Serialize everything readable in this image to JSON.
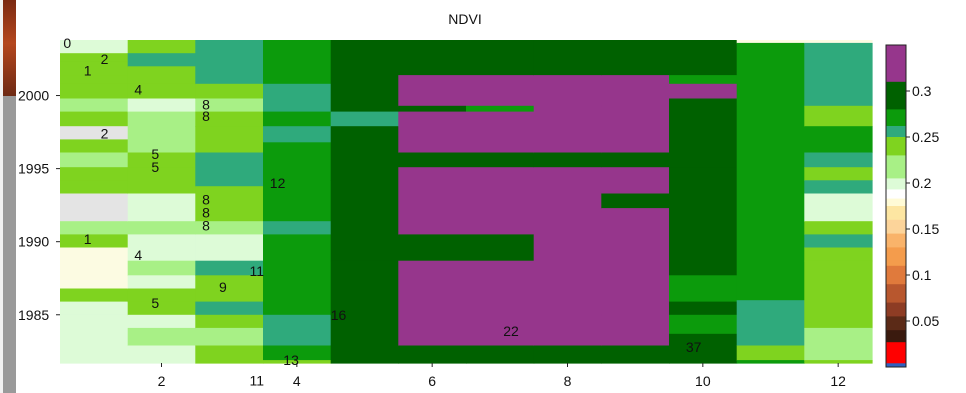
{
  "chart_data": {
    "type": "heatmap",
    "title": "NDVI",
    "x_ticks": [
      "2",
      "4",
      "6",
      "8",
      "10",
      "12"
    ],
    "y_ticks": [
      "2000",
      "1995",
      "1990",
      "1985"
    ],
    "x_range": [
      1,
      13
    ],
    "y_range": [
      1981.7,
      2003.8
    ],
    "columns": [
      {
        "x": 1,
        "segments": [
          [
            2002.9,
            2004,
            0.196
          ],
          [
            2002.3,
            2002.9,
            0.244
          ],
          [
            2001.4,
            2002.3,
            0.234
          ],
          [
            2000.8,
            2001.4,
            0.238
          ],
          [
            1999.8,
            2000.8,
            0.239
          ],
          [
            1998.9,
            1999.8,
            0.213
          ],
          [
            1997.9,
            1998.9,
            0.236
          ],
          [
            1997.0,
            1997.9,
            0.185
          ],
          [
            1996.1,
            1997.0,
            0.234
          ],
          [
            1995.1,
            1996.1,
            0.212
          ],
          [
            1994.2,
            1995.1,
            0.239
          ],
          [
            1993.3,
            1994.2,
            0.236
          ],
          [
            1991.4,
            1993.3,
            0.186
          ],
          [
            1990.5,
            1991.4,
            0.21
          ],
          [
            1989.6,
            1990.5,
            0.244
          ],
          [
            1988.7,
            1989.6,
            0.192
          ],
          [
            1986.8,
            1988.7,
            0.192
          ],
          [
            1985.9,
            1986.8,
            0.244
          ],
          [
            1985.0,
            1985.9,
            0.2
          ],
          [
            1981.6,
            1985.0,
            0.199
          ]
        ]
      },
      {
        "x": 2,
        "segments": [
          [
            2002.9,
            2004,
            0.236
          ],
          [
            2002.0,
            2002.9,
            0.259
          ],
          [
            2000.8,
            2002.0,
            0.236
          ],
          [
            1999.8,
            2000.8,
            0.238
          ],
          [
            1998.9,
            1999.8,
            0.198
          ],
          [
            1996.1,
            1998.9,
            0.21
          ],
          [
            1995.1,
            1996.1,
            0.235
          ],
          [
            1993.3,
            1995.1,
            0.236
          ],
          [
            1991.4,
            1993.3,
            0.198
          ],
          [
            1990.5,
            1991.4,
            0.212
          ],
          [
            1989.6,
            1990.5,
            0.199
          ],
          [
            1988.7,
            1989.6,
            0.199
          ],
          [
            1987.7,
            1988.7,
            0.21
          ],
          [
            1986.8,
            1987.7,
            0.195
          ],
          [
            1985.9,
            1986.8,
            0.236
          ],
          [
            1985.0,
            1985.9,
            0.235
          ],
          [
            1984.1,
            1985.0,
            0.197
          ],
          [
            1982.9,
            1984.1,
            0.21
          ],
          [
            1981.6,
            1982.9,
            0.198
          ]
        ]
      },
      {
        "x": 3,
        "segments": [
          [
            2000.8,
            2004,
            0.259
          ],
          [
            1999.8,
            2000.8,
            0.238
          ],
          [
            1998.9,
            1999.8,
            0.212
          ],
          [
            1997.9,
            1998.9,
            0.237
          ],
          [
            1996.1,
            1997.9,
            0.236
          ],
          [
            1993.8,
            1996.1,
            0.259
          ],
          [
            1991.4,
            1993.8,
            0.238
          ],
          [
            1990.5,
            1991.4,
            0.21
          ],
          [
            1988.7,
            1990.5,
            0.2
          ],
          [
            1987.7,
            1988.7,
            0.257
          ],
          [
            1985.9,
            1987.7,
            0.238
          ],
          [
            1985.0,
            1985.9,
            0.257
          ],
          [
            1984.1,
            1985.0,
            0.238
          ],
          [
            1982.9,
            1984.1,
            0.212
          ],
          [
            1981.6,
            1982.9,
            0.238
          ]
        ]
      },
      {
        "x": 4,
        "segments": [
          [
            2000.8,
            2004,
            0.27
          ],
          [
            1998.9,
            2000.8,
            0.259
          ],
          [
            1997.9,
            1998.9,
            0.27
          ],
          [
            1996.8,
            1997.9,
            0.259
          ],
          [
            1991.4,
            1996.8,
            0.27
          ],
          [
            1990.5,
            1991.4,
            0.259
          ],
          [
            1985.0,
            1990.5,
            0.27
          ],
          [
            1982.9,
            1985.0,
            0.259
          ],
          [
            1981.9,
            1982.9,
            0.27
          ],
          [
            1981.6,
            1981.9,
            0.236
          ]
        ]
      },
      {
        "x": 5,
        "segments": [
          [
            1998.9,
            2004,
            0.3
          ],
          [
            1997.9,
            1998.9,
            0.259
          ],
          [
            1994.2,
            1997.9,
            0.3
          ],
          [
            1988.7,
            1994.2,
            0.3
          ],
          [
            1985.0,
            1988.7,
            0.3
          ],
          [
            1982.9,
            1985.0,
            0.3
          ],
          [
            1981.6,
            1982.9,
            0.3
          ]
        ]
      },
      {
        "x": 6,
        "segments": [
          [
            2001.4,
            2004,
            0.3
          ],
          [
            1999.3,
            2001.4,
            0.35
          ],
          [
            1998.9,
            1999.3,
            0.3
          ],
          [
            1996.1,
            1998.9,
            0.35
          ],
          [
            1995.1,
            1996.1,
            0.3
          ],
          [
            1990.5,
            1995.1,
            0.35
          ],
          [
            1988.7,
            1990.5,
            0.3
          ],
          [
            1982.9,
            1988.7,
            0.35
          ],
          [
            1981.6,
            1982.9,
            0.3
          ]
        ]
      },
      {
        "x": 7,
        "segments": [
          [
            2001.4,
            2004,
            0.3
          ],
          [
            1999.3,
            2001.4,
            0.35
          ],
          [
            1998.9,
            1999.3,
            0.27
          ],
          [
            1996.1,
            1998.9,
            0.35
          ],
          [
            1995.1,
            1996.1,
            0.3
          ],
          [
            1990.5,
            1995.1,
            0.35
          ],
          [
            1988.7,
            1990.5,
            0.3
          ],
          [
            1982.9,
            1988.7,
            0.35
          ],
          [
            1981.6,
            1982.9,
            0.3
          ]
        ]
      },
      {
        "x": 8,
        "segments": [
          [
            2001.4,
            2004,
            0.3
          ],
          [
            1999.3,
            2001.4,
            0.35
          ],
          [
            1996.1,
            1999.3,
            0.35
          ],
          [
            1995.1,
            1996.1,
            0.3
          ],
          [
            1988.7,
            1995.1,
            0.35
          ],
          [
            1982.9,
            1988.7,
            0.35
          ],
          [
            1981.6,
            1982.9,
            0.3
          ]
        ]
      },
      {
        "x": 9,
        "segments": [
          [
            2001.4,
            2004,
            0.3
          ],
          [
            1999.3,
            2001.4,
            0.35
          ],
          [
            1996.1,
            1999.3,
            0.35
          ],
          [
            1995.1,
            1996.1,
            0.3
          ],
          [
            1993.3,
            1995.1,
            0.35
          ],
          [
            1992.3,
            1993.3,
            0.3
          ],
          [
            1987.7,
            1992.3,
            0.35
          ],
          [
            1985.0,
            1987.7,
            0.35
          ],
          [
            1982.9,
            1985.0,
            0.35
          ],
          [
            1981.6,
            1982.9,
            0.3
          ]
        ]
      },
      {
        "x": 10,
        "segments": [
          [
            2001.4,
            2004,
            0.3
          ],
          [
            2000.8,
            2001.4,
            0.27
          ],
          [
            1999.8,
            2000.8,
            0.35
          ],
          [
            1998.9,
            1999.8,
            0.3
          ],
          [
            1995.1,
            1998.9,
            0.3
          ],
          [
            1987.7,
            1995.1,
            0.3
          ],
          [
            1985.9,
            1987.7,
            0.27
          ],
          [
            1985.0,
            1985.9,
            0.3
          ],
          [
            1983.7,
            1985.0,
            0.27
          ],
          [
            1981.6,
            1983.7,
            0.3
          ]
        ]
      },
      {
        "x": 11,
        "segments": [
          [
            2003.6,
            2004,
            0.19
          ],
          [
            1986.0,
            2003.6,
            0.27
          ],
          [
            1982.9,
            1986.0,
            0.259
          ],
          [
            1981.9,
            1982.9,
            0.244
          ],
          [
            1981.6,
            1981.9,
            0.27
          ]
        ]
      },
      {
        "x": 12,
        "segments": [
          [
            2003.6,
            2004,
            0.19
          ],
          [
            1999.3,
            2003.6,
            0.259
          ],
          [
            1997.9,
            1999.3,
            0.238
          ],
          [
            1996.1,
            1997.9,
            0.27
          ],
          [
            1995.1,
            1996.1,
            0.259
          ],
          [
            1994.2,
            1995.1,
            0.238
          ],
          [
            1993.3,
            1994.2,
            0.259
          ],
          [
            1991.4,
            1993.3,
            0.198
          ],
          [
            1990.5,
            1991.4,
            0.238
          ],
          [
            1989.6,
            1990.5,
            0.259
          ],
          [
            1988.7,
            1989.6,
            0.238
          ],
          [
            1984.1,
            1988.7,
            0.238
          ],
          [
            1981.9,
            1984.1,
            0.21
          ],
          [
            1981.6,
            1981.9,
            0.238
          ]
        ]
      }
    ],
    "annotations": [
      {
        "text": "0",
        "x": 1.05,
        "y": 2003.6
      },
      {
        "text": "2",
        "x": 1.6,
        "y": 2002.5
      },
      {
        "text": "1",
        "x": 1.35,
        "y": 2001.7
      },
      {
        "text": "4",
        "x": 2.1,
        "y": 2000.4
      },
      {
        "text": "8",
        "x": 3.1,
        "y": 1999.4
      },
      {
        "text": "8",
        "x": 3.1,
        "y": 1998.6
      },
      {
        "text": "2",
        "x": 1.6,
        "y": 1997.4
      },
      {
        "text": "5",
        "x": 2.35,
        "y": 1996.0
      },
      {
        "text": "5",
        "x": 2.35,
        "y": 1995.1
      },
      {
        "text": "12",
        "x": 4.1,
        "y": 1994.0
      },
      {
        "text": "8",
        "x": 3.1,
        "y": 1992.9
      },
      {
        "text": "8",
        "x": 3.1,
        "y": 1992.0
      },
      {
        "text": "8",
        "x": 3.1,
        "y": 1991.1
      },
      {
        "text": "1",
        "x": 1.35,
        "y": 1990.2
      },
      {
        "text": "4",
        "x": 2.1,
        "y": 1989.1
      },
      {
        "text": "11",
        "x": 3.8,
        "y": 1988.0
      },
      {
        "text": "9",
        "x": 3.35,
        "y": 1986.9
      },
      {
        "text": "5",
        "x": 2.35,
        "y": 1985.8
      },
      {
        "text": "16",
        "x": 5.0,
        "y": 1985.0
      },
      {
        "text": "22",
        "x": 7.55,
        "y": 1983.9
      },
      {
        "text": "37",
        "x": 10.25,
        "y": 1982.8
      },
      {
        "text": "13",
        "x": 4.3,
        "y": 1981.9
      },
      {
        "text": "11",
        "x": 3.8,
        "y": 1980.5
      }
    ],
    "colorbar": {
      "ticks": [
        "0.3",
        "0.25",
        "0.2",
        "0.15",
        "0.1",
        "0.05"
      ],
      "tick_values": [
        0.3,
        0.25,
        0.2,
        0.15,
        0.1,
        0.05
      ],
      "range": [
        0,
        0.35
      ]
    },
    "colors": {
      "magenta": "#96368c",
      "dark_green": "#006100",
      "green": "#0c9b0c",
      "teal": "#2faa7c",
      "lime": "#7fd31f",
      "light_green": "#a8f086",
      "pale_green": "#ddfbd7",
      "cream": "#fcfbe2",
      "light_gray": "#e4e4e4"
    }
  }
}
